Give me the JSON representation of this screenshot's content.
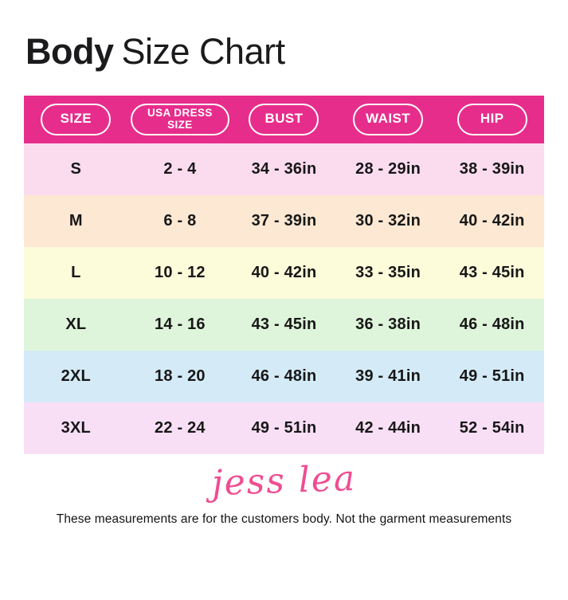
{
  "title": {
    "bold": "Body",
    "regular": "Size Chart"
  },
  "chart_data": {
    "type": "table",
    "title": "Body Size Chart",
    "columns": [
      "SIZE",
      "USA DRESS SIZE",
      "BUST",
      "WAIST",
      "HIP"
    ],
    "rows": [
      {
        "size": "S",
        "usa_dress_size": "2 - 4",
        "bust": "34 - 36in",
        "waist": "28 - 29in",
        "hip": "38 - 39in",
        "row_color": "#FBDCEF"
      },
      {
        "size": "M",
        "usa_dress_size": "6 - 8",
        "bust": "37 - 39in",
        "waist": "30 - 32in",
        "hip": "40 - 42in",
        "row_color": "#FCE8D3"
      },
      {
        "size": "L",
        "usa_dress_size": "10 - 12",
        "bust": "40 - 42in",
        "waist": "33 - 35in",
        "hip": "43 - 45in",
        "row_color": "#FCFBDA"
      },
      {
        "size": "XL",
        "usa_dress_size": "14 - 16",
        "bust": "43 - 45in",
        "waist": "36 - 38in",
        "hip": "46 - 48in",
        "row_color": "#DFF5DB"
      },
      {
        "size": "2XL",
        "usa_dress_size": "18 - 20",
        "bust": "46 - 48in",
        "waist": "39 - 41in",
        "hip": "49 - 51in",
        "row_color": "#D4EBF7"
      },
      {
        "size": "3XL",
        "usa_dress_size": "22 - 24",
        "bust": "49 - 51in",
        "waist": "42 - 44in",
        "hip": "52 - 54in",
        "row_color": "#F9DFF5"
      }
    ]
  },
  "colors": {
    "header_bar": "#E72D8C",
    "pill_border": "#FFFFFF",
    "header_text": "#FFFFFF",
    "signature_pink": "#EF4D92",
    "body_text": "#171717"
  },
  "signature": "jess lea",
  "footnote": "These measurements are for the customers body. Not the garment measurements"
}
